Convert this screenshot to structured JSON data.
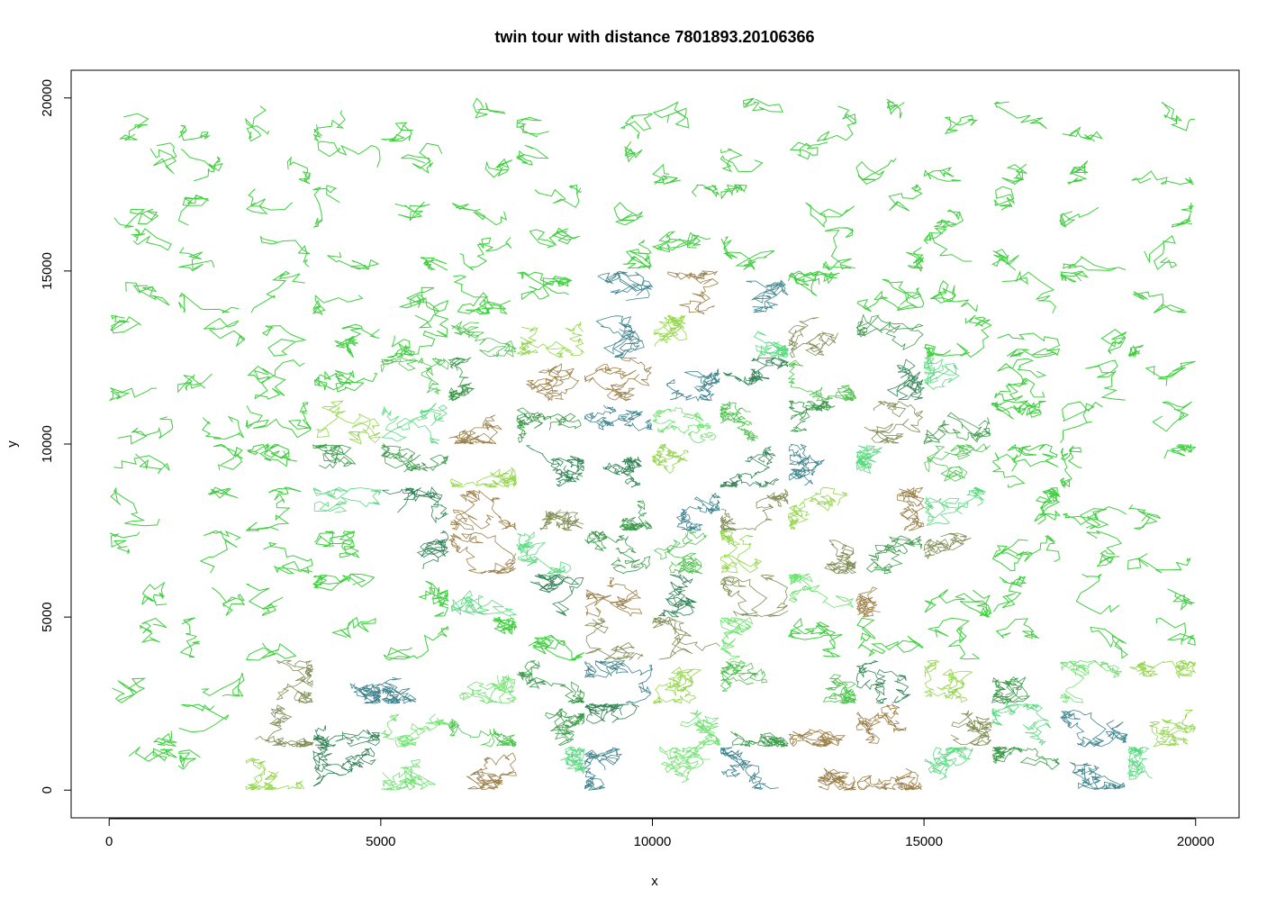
{
  "chart_data": {
    "type": "line",
    "title": "twin tour with distance  7801893.20106366",
    "xlabel": "x",
    "ylabel": "y",
    "xlim": [
      -700,
      20800
    ],
    "ylim": [
      -800,
      20800
    ],
    "x_ticks": [
      0,
      5000,
      10000,
      15000,
      20000
    ],
    "y_ticks": [
      0,
      5000,
      10000,
      15000,
      20000
    ],
    "x_tick_labels": [
      "0",
      "5000",
      "10000",
      "15000",
      "20000"
    ],
    "y_tick_labels": [
      "0",
      "5000",
      "10000",
      "15000",
      "20000"
    ],
    "grid": false,
    "legend": "none",
    "tile_size": [
      1250,
      1250
    ],
    "tile_grid": {
      "columns": 16,
      "rows": 16,
      "x_range": [
        0,
        20000
      ],
      "y_range": [
        0,
        20000
      ]
    },
    "colors": {
      "line": "#33cc33",
      "tile_palette": [
        "#2fb82f",
        "#1a8a2a",
        "#3dd46a",
        "#0f6f3a",
        "#7fcf2a",
        "#6b7a3a",
        "#8a6a2a",
        "#1f6f7a",
        "#55dd55"
      ]
    },
    "series": [
      {
        "segments_note": "",
        "dense_region_center": [
          10500,
          9500
        ]
      }
    ]
  }
}
